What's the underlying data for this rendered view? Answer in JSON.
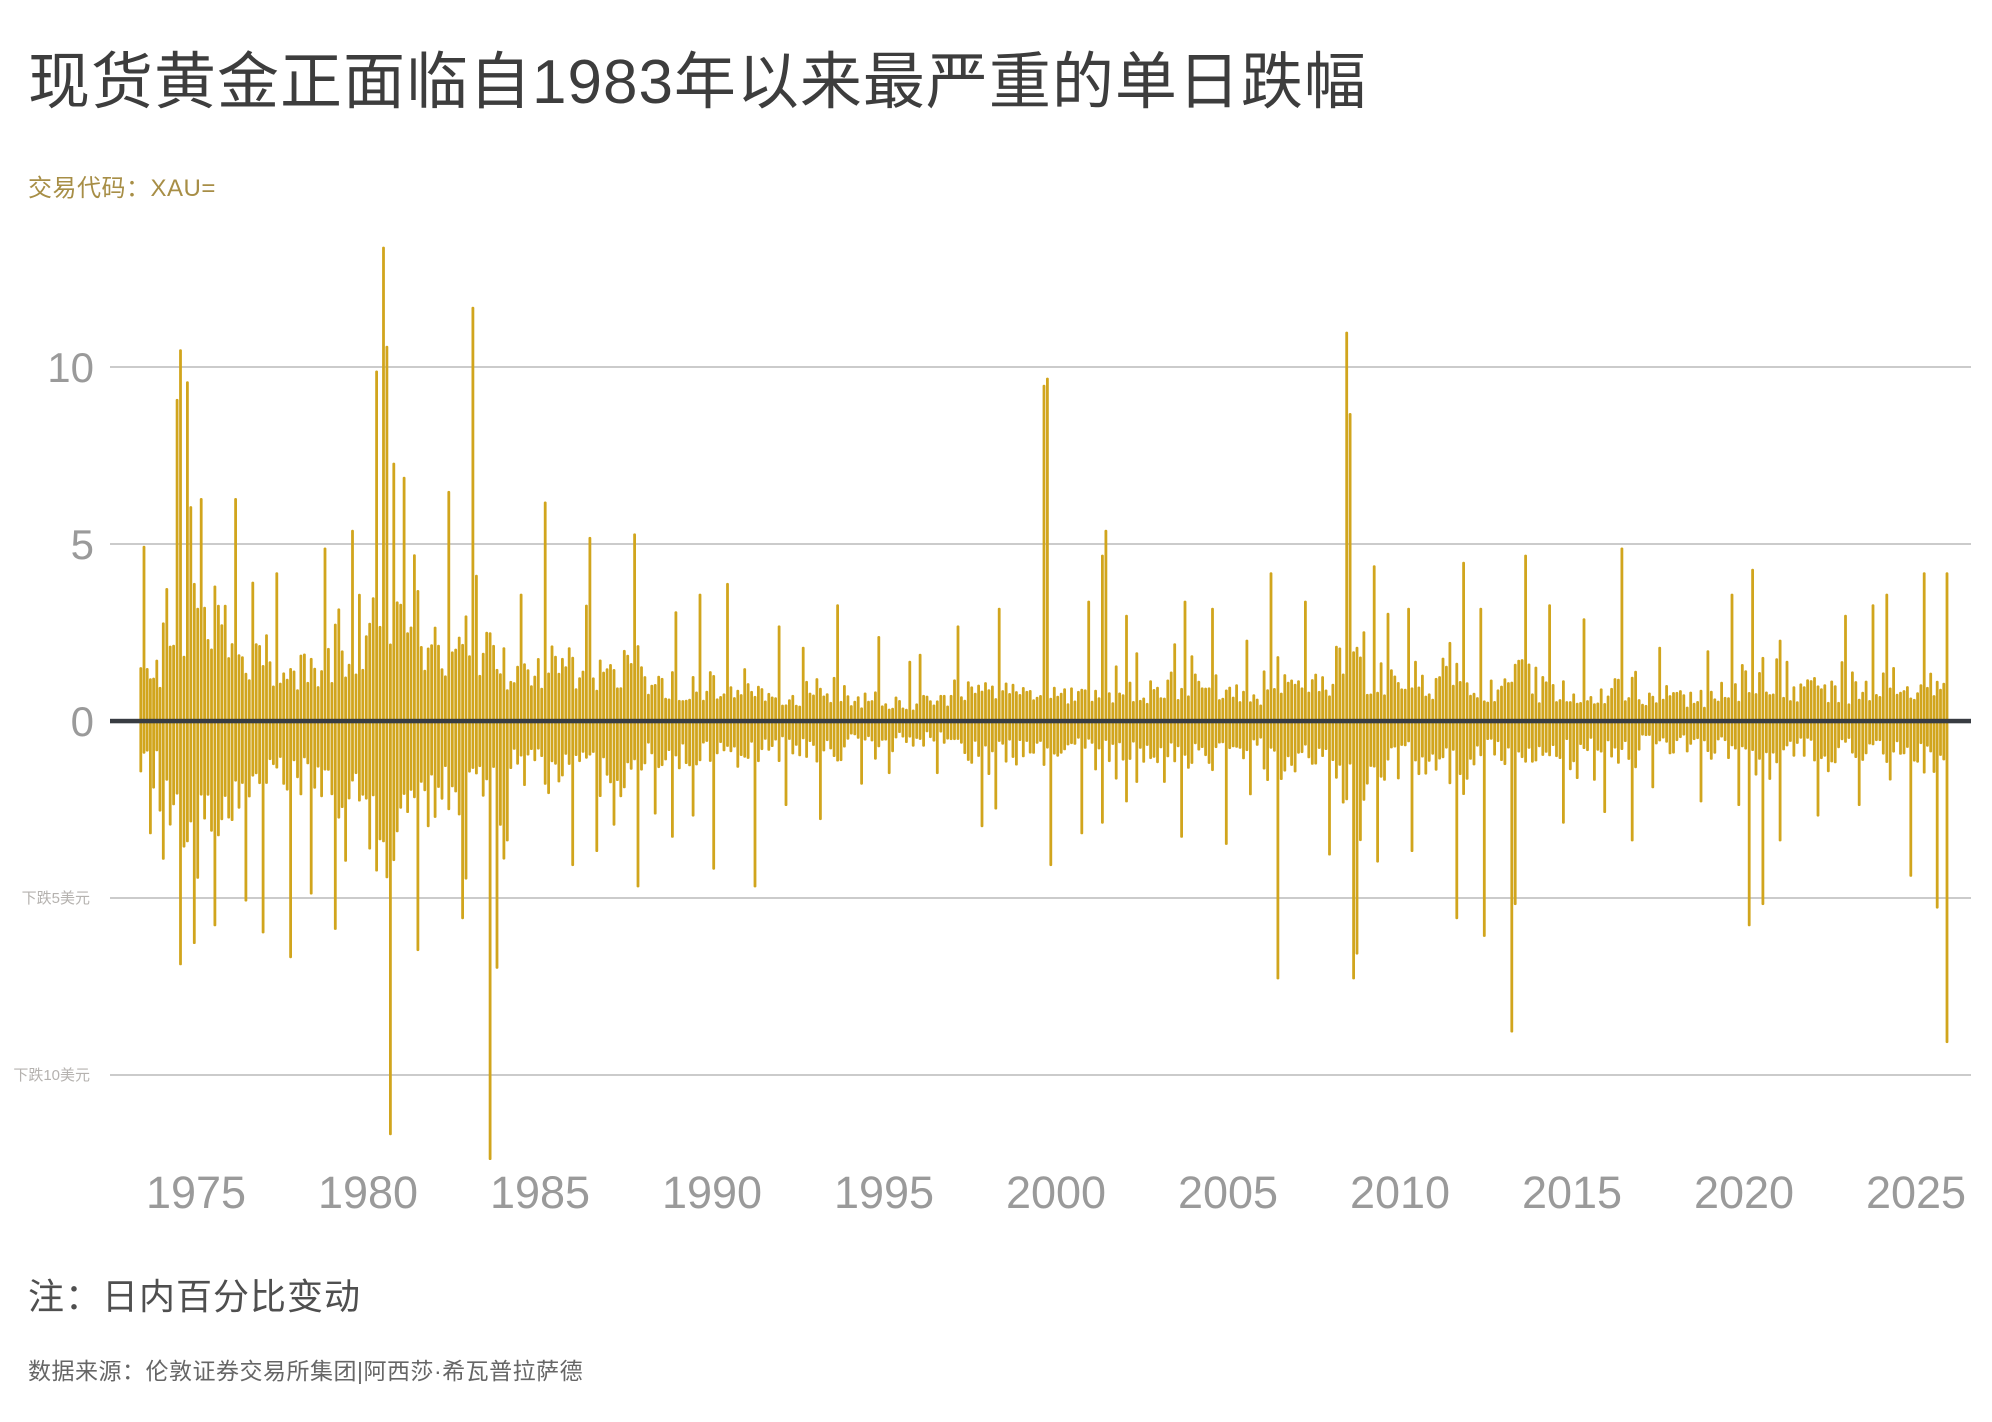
{
  "page": {
    "title": "现货黄金正面临自1983年以来最严重的单日跌幅",
    "subtitle": "交易代码：XAU=",
    "note": "注：日内百分比变动",
    "source": "数据来源：伦敦证券交易所集团|阿西莎·希瓦普拉萨德"
  },
  "colors": {
    "background": "#ffffff",
    "bar_gold": "#d1a51d",
    "title_text": "#3d3d3d",
    "subtitle_gold": "#a78e46",
    "axis_label": "#9a9a9a",
    "small_annotation": "#b5b2af",
    "gridline": "#cbcbcb",
    "zero_line": "#383c42",
    "note_text": "#4f4f4f",
    "source_text": "#666666"
  },
  "chart_data": {
    "type": "bar",
    "title": "现货黄金正面临自1983年以来最严重的单日跌幅",
    "subtitle": "交易代码：XAU=",
    "note": "注：日内百分比变动",
    "source": "数据来源：伦敦证券交易所集团|阿西莎·希瓦普拉萨德",
    "unit": "intraday percent change of spot gold (XAU=), daily bars",
    "grid": "horizontal gridlines on",
    "legend": "none",
    "x_axis": {
      "ticks": [
        1975,
        1980,
        1985,
        1990,
        1995,
        2000,
        2005,
        2010,
        2015,
        2020,
        2025
      ],
      "range": [
        1973.35,
        2025.95
      ]
    },
    "y_axis": {
      "gridlines": [
        10,
        5,
        -5,
        -10
      ],
      "zero_baseline": 0,
      "tick_labels": [
        {
          "value": 10,
          "label": "10"
        },
        {
          "value": 5,
          "label": "5"
        },
        {
          "value": 0,
          "label": "0"
        }
      ],
      "annotation_labels": [
        {
          "value": -5,
          "label": "下跌5美元"
        },
        {
          "value": -10,
          "label": "下跌10美元"
        }
      ],
      "ylim": [
        -13.6,
        14.2
      ]
    },
    "envelope_format": "[year, max_daily_gain_pct, max_daily_loss_pct, typical_daily_amplitude_pct]",
    "yearly_envelope": [
      [
        1973,
        5.0,
        3.2,
        1.3
      ],
      [
        1974,
        10.5,
        6.9,
        2.7
      ],
      [
        1975,
        6.3,
        6.3,
        2.2
      ],
      [
        1976,
        6.3,
        5.2,
        1.9
      ],
      [
        1977,
        4.2,
        6.7,
        1.4
      ],
      [
        1978,
        4.9,
        4.9,
        1.5
      ],
      [
        1979,
        5.4,
        5.9,
        2.0
      ],
      [
        1980,
        13.4,
        11.7,
        3.0
      ],
      [
        1981,
        6.9,
        6.5,
        2.3
      ],
      [
        1982,
        6.5,
        5.6,
        2.0
      ],
      [
        1983,
        11.7,
        12.4,
        2.1
      ],
      [
        1984,
        3.6,
        3.4,
        1.3
      ],
      [
        1985,
        6.2,
        4.1,
        1.5
      ],
      [
        1986,
        5.2,
        3.7,
        1.4
      ],
      [
        1987,
        5.3,
        4.7,
        1.5
      ],
      [
        1988,
        3.1,
        3.3,
        1.0
      ],
      [
        1989,
        3.6,
        2.7,
        0.95
      ],
      [
        1990,
        3.9,
        4.2,
        1.0
      ],
      [
        1991,
        2.7,
        4.7,
        0.85
      ],
      [
        1992,
        2.1,
        2.4,
        0.7
      ],
      [
        1993,
        3.3,
        2.8,
        0.85
      ],
      [
        1994,
        2.4,
        1.8,
        0.6
      ],
      [
        1995,
        1.7,
        1.5,
        0.5
      ],
      [
        1996,
        1.9,
        1.5,
        0.5
      ],
      [
        1997,
        2.7,
        3.0,
        0.85
      ],
      [
        1998,
        3.2,
        2.5,
        0.85
      ],
      [
        1999,
        9.7,
        4.1,
        0.95
      ],
      [
        2000,
        3.4,
        3.2,
        0.8
      ],
      [
        2001,
        5.4,
        2.9,
        0.85
      ],
      [
        2002,
        3.0,
        2.3,
        0.8
      ],
      [
        2003,
        3.4,
        3.3,
        1.0
      ],
      [
        2004,
        3.2,
        3.5,
        1.0
      ],
      [
        2005,
        2.3,
        2.1,
        0.75
      ],
      [
        2006,
        4.2,
        7.3,
        1.25
      ],
      [
        2007,
        3.4,
        3.8,
        1.0
      ],
      [
        2008,
        11.0,
        7.3,
        1.7
      ],
      [
        2009,
        4.4,
        4.0,
        1.2
      ],
      [
        2010,
        3.2,
        3.7,
        0.95
      ],
      [
        2011,
        4.5,
        5.6,
        1.25
      ],
      [
        2012,
        3.2,
        6.1,
        0.85
      ],
      [
        2013,
        4.7,
        8.8,
        1.25
      ],
      [
        2014,
        3.3,
        2.9,
        0.85
      ],
      [
        2015,
        2.9,
        2.6,
        0.8
      ],
      [
        2016,
        4.9,
        3.4,
        0.9
      ],
      [
        2017,
        2.1,
        1.9,
        0.65
      ],
      [
        2018,
        2.0,
        2.3,
        0.65
      ],
      [
        2019,
        3.6,
        2.4,
        0.75
      ],
      [
        2020,
        4.3,
        5.8,
        1.2
      ],
      [
        2021,
        2.3,
        3.4,
        0.8
      ],
      [
        2022,
        3.0,
        2.7,
        0.85
      ],
      [
        2023,
        3.3,
        2.4,
        0.8
      ],
      [
        2024,
        3.6,
        3.6,
        0.95
      ],
      [
        2025,
        4.3,
        9.1,
        1.05
      ]
    ],
    "notable_days_format": "[decimal_year, pct_change]",
    "notable_days": [
      [
        1973.45,
        4.95
      ],
      [
        1974.4,
        9.1
      ],
      [
        1974.55,
        10.5
      ],
      [
        1974.75,
        9.6
      ],
      [
        1974.6,
        -6.9
      ],
      [
        1975.0,
        -6.3
      ],
      [
        1975.15,
        6.3
      ],
      [
        1975.6,
        -5.8
      ],
      [
        1976.2,
        6.3
      ],
      [
        1976.45,
        -5.1
      ],
      [
        1977.0,
        -6.0
      ],
      [
        1977.75,
        -6.7
      ],
      [
        1980.3,
        9.9
      ],
      [
        1980.5,
        13.4
      ],
      [
        1980.55,
        10.6
      ],
      [
        1980.62,
        -11.7
      ],
      [
        1980.8,
        7.3
      ],
      [
        1983.1,
        11.7
      ],
      [
        1983.55,
        -12.4
      ],
      [
        1983.75,
        -7.0
      ],
      [
        1985.2,
        6.2
      ],
      [
        1986.4,
        5.2
      ],
      [
        1987.8,
        5.3
      ],
      [
        1990.5,
        3.9
      ],
      [
        1991.3,
        -4.7
      ],
      [
        1999.7,
        9.5
      ],
      [
        1999.78,
        9.7
      ],
      [
        1999.85,
        -4.1
      ],
      [
        2001.35,
        4.7
      ],
      [
        2001.45,
        5.4
      ],
      [
        2006.45,
        -7.3
      ],
      [
        2008.45,
        11.0
      ],
      [
        2008.52,
        8.7
      ],
      [
        2008.65,
        -7.3
      ],
      [
        2008.8,
        -6.6
      ],
      [
        2011.7,
        -5.6
      ],
      [
        2012.45,
        -6.1
      ],
      [
        2013.3,
        -8.8
      ],
      [
        2013.38,
        -5.2
      ],
      [
        2016.5,
        4.9
      ],
      [
        2020.2,
        -5.8
      ],
      [
        2020.28,
        4.3
      ],
      [
        2020.6,
        -5.2
      ],
      [
        2024.85,
        -4.4
      ],
      [
        2025.25,
        4.2
      ],
      [
        2025.6,
        -5.3
      ],
      [
        2025.88,
        4.2
      ],
      [
        2025.93,
        -9.1
      ]
    ]
  }
}
